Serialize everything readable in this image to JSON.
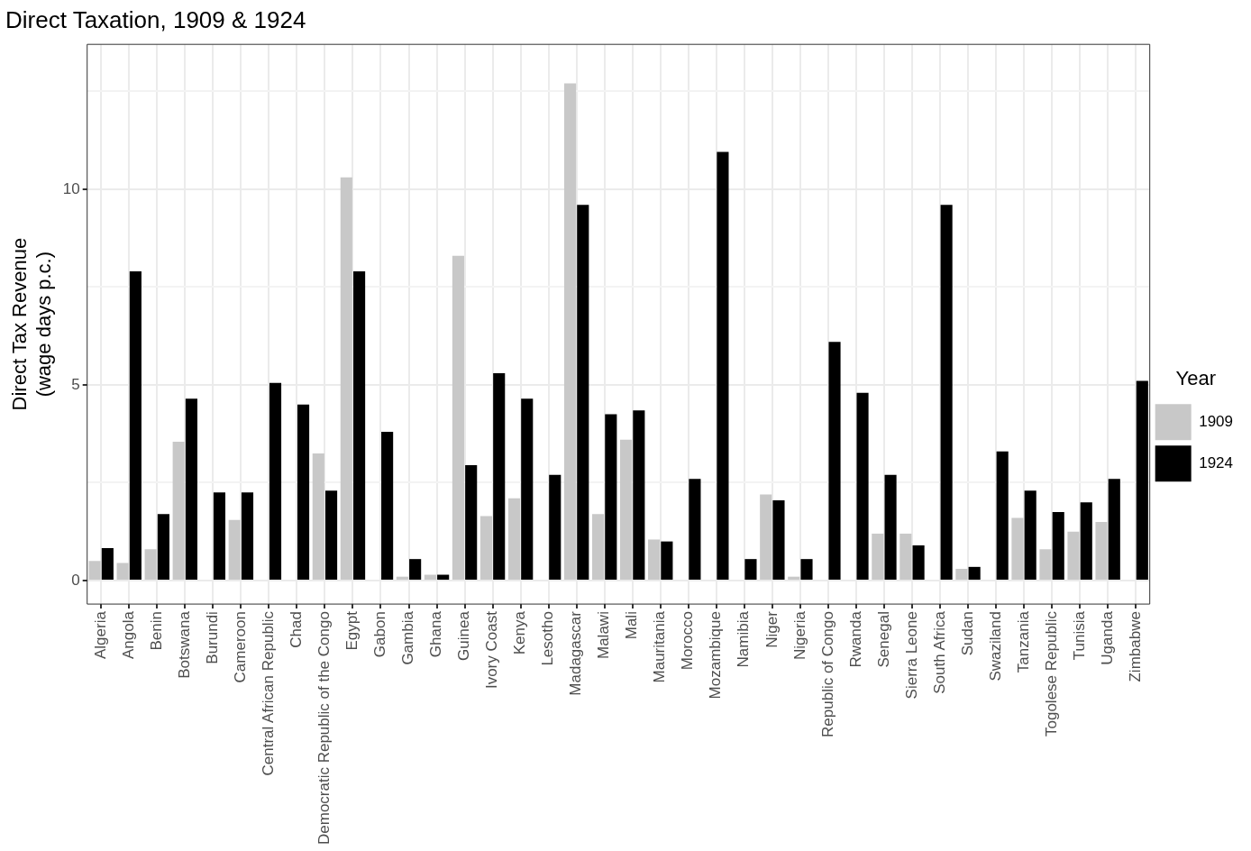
{
  "chart_data": {
    "type": "bar",
    "title": "Direct Taxation, 1909 & 1924",
    "ylabel": "Direct Tax Revenue\n(wage days p.c.)",
    "legend_title": "Year",
    "categories": [
      "Algeria",
      "Angola",
      "Benin",
      "Botswana",
      "Burundi",
      "Cameroon",
      "Central African Republic",
      "Chad",
      "Democratic Republic of the Congo",
      "Egypt",
      "Gabon",
      "Gambia",
      "Ghana",
      "Guinea",
      "Ivory Coast",
      "Kenya",
      "Lesotho",
      "Madagascar",
      "Malawi",
      "Mali",
      "Mauritania",
      "Morocco",
      "Mozambique",
      "Namibia",
      "Niger",
      "Nigeria",
      "Republic of Congo",
      "Rwanda",
      "Senegal",
      "Sierra Leone",
      "South Africa",
      "Sudan",
      "Swaziland",
      "Tanzania",
      "Togolese Republic",
      "Tunisia",
      "Uganda",
      "Zimbabwe"
    ],
    "series": [
      {
        "name": "1909",
        "color": "#c8c8c8",
        "values": [
          0.5,
          0.45,
          0.8,
          3.55,
          null,
          1.55,
          null,
          null,
          3.25,
          10.3,
          null,
          0.1,
          0.15,
          8.3,
          1.65,
          2.1,
          null,
          12.7,
          1.7,
          3.6,
          1.05,
          null,
          null,
          null,
          2.2,
          0.1,
          null,
          null,
          1.2,
          1.2,
          null,
          0.3,
          null,
          1.6,
          0.8,
          1.25,
          1.5,
          null
        ]
      },
      {
        "name": "1924",
        "color": "#000000",
        "values": [
          0.83,
          7.9,
          1.7,
          4.65,
          2.25,
          2.25,
          5.05,
          4.5,
          2.3,
          7.9,
          3.8,
          0.55,
          0.15,
          2.95,
          5.3,
          4.65,
          2.7,
          9.6,
          4.25,
          4.35,
          1.0,
          2.6,
          10.95,
          0.55,
          2.05,
          0.55,
          6.1,
          4.8,
          2.7,
          0.9,
          9.6,
          0.35,
          3.3,
          2.3,
          1.75,
          2.0,
          2.6,
          5.1
        ]
      }
    ],
    "ylim": [
      -0.6,
      13.7
    ],
    "yticks": [
      {
        "value": 0,
        "label": "0"
      },
      {
        "value": 2.5,
        "label": null
      },
      {
        "value": 5,
        "label": "5"
      },
      {
        "value": 7.5,
        "label": null
      },
      {
        "value": 10,
        "label": "10"
      },
      {
        "value": 12.5,
        "label": null
      }
    ],
    "grid": true,
    "legend": "right"
  }
}
